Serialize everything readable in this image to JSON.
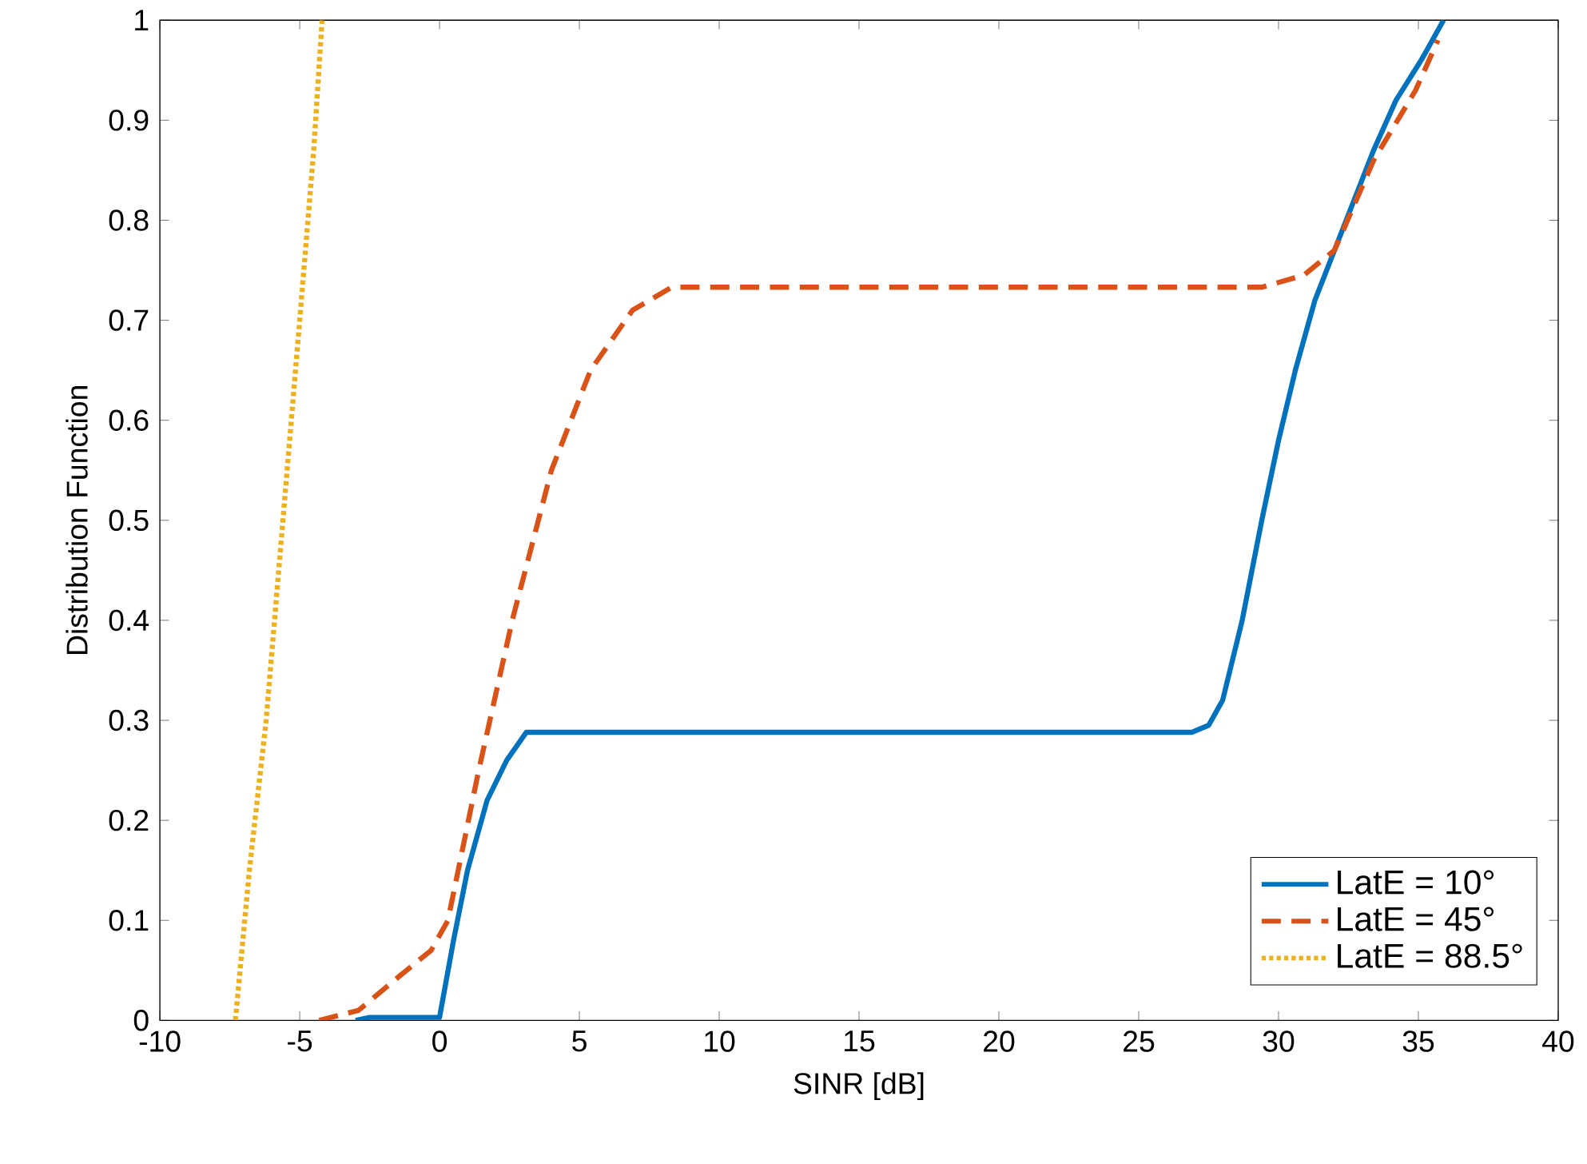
{
  "chart_data": {
    "type": "line",
    "xlabel": "SINR [dB]",
    "ylabel": "Distribution Function",
    "xlim": [
      -10,
      40
    ],
    "ylim": [
      0,
      1
    ],
    "xticks": [
      -10,
      -5,
      0,
      5,
      10,
      15,
      20,
      25,
      30,
      35,
      40
    ],
    "yticks": [
      0,
      0.1,
      0.2,
      0.3,
      0.4,
      0.5,
      0.6,
      0.7,
      0.8,
      0.9,
      1
    ],
    "grid": false,
    "legend": "bottom right",
    "marker": "none",
    "series": [
      {
        "name": "LatE = 10°",
        "color": "#0072bd",
        "line_style": "solid",
        "x": [
          -3.0,
          -2.5,
          0.0,
          0.5,
          1.0,
          1.7,
          2.4,
          3.1,
          10,
          20,
          26.9,
          27.5,
          28.0,
          28.7,
          29.4,
          30.0,
          30.6,
          31.3,
          32.0,
          32.7,
          33.4,
          34.2,
          35.1,
          35.9
        ],
        "values": [
          0.0,
          0.003,
          0.003,
          0.08,
          0.15,
          0.22,
          0.26,
          0.288,
          0.288,
          0.288,
          0.288,
          0.295,
          0.32,
          0.4,
          0.5,
          0.58,
          0.65,
          0.72,
          0.77,
          0.82,
          0.87,
          0.92,
          0.96,
          1.0
        ]
      },
      {
        "name": "LatE = 45°",
        "color": "#d95319",
        "line_style": "dashed",
        "x": [
          -4.3,
          -2.9,
          -1.4,
          -0.3,
          0.3,
          1.4,
          2.6,
          4.0,
          5.4,
          6.9,
          8.3,
          15,
          25,
          29.4,
          30.9,
          32.0,
          33.4,
          34.9,
          35.7
        ],
        "values": [
          0.0,
          0.01,
          0.045,
          0.07,
          0.1,
          0.25,
          0.4,
          0.55,
          0.65,
          0.71,
          0.733,
          0.733,
          0.733,
          0.733,
          0.745,
          0.77,
          0.86,
          0.93,
          0.98
        ]
      },
      {
        "name": "LatE = 88.5°",
        "color": "#edb120",
        "line_style": "dotted",
        "x": [
          -7.3,
          -6.8,
          -6.2,
          -5.6,
          -5.0,
          -4.5,
          -4.2
        ],
        "values": [
          0.0,
          0.15,
          0.3,
          0.5,
          0.7,
          0.87,
          1.0
        ]
      }
    ]
  }
}
